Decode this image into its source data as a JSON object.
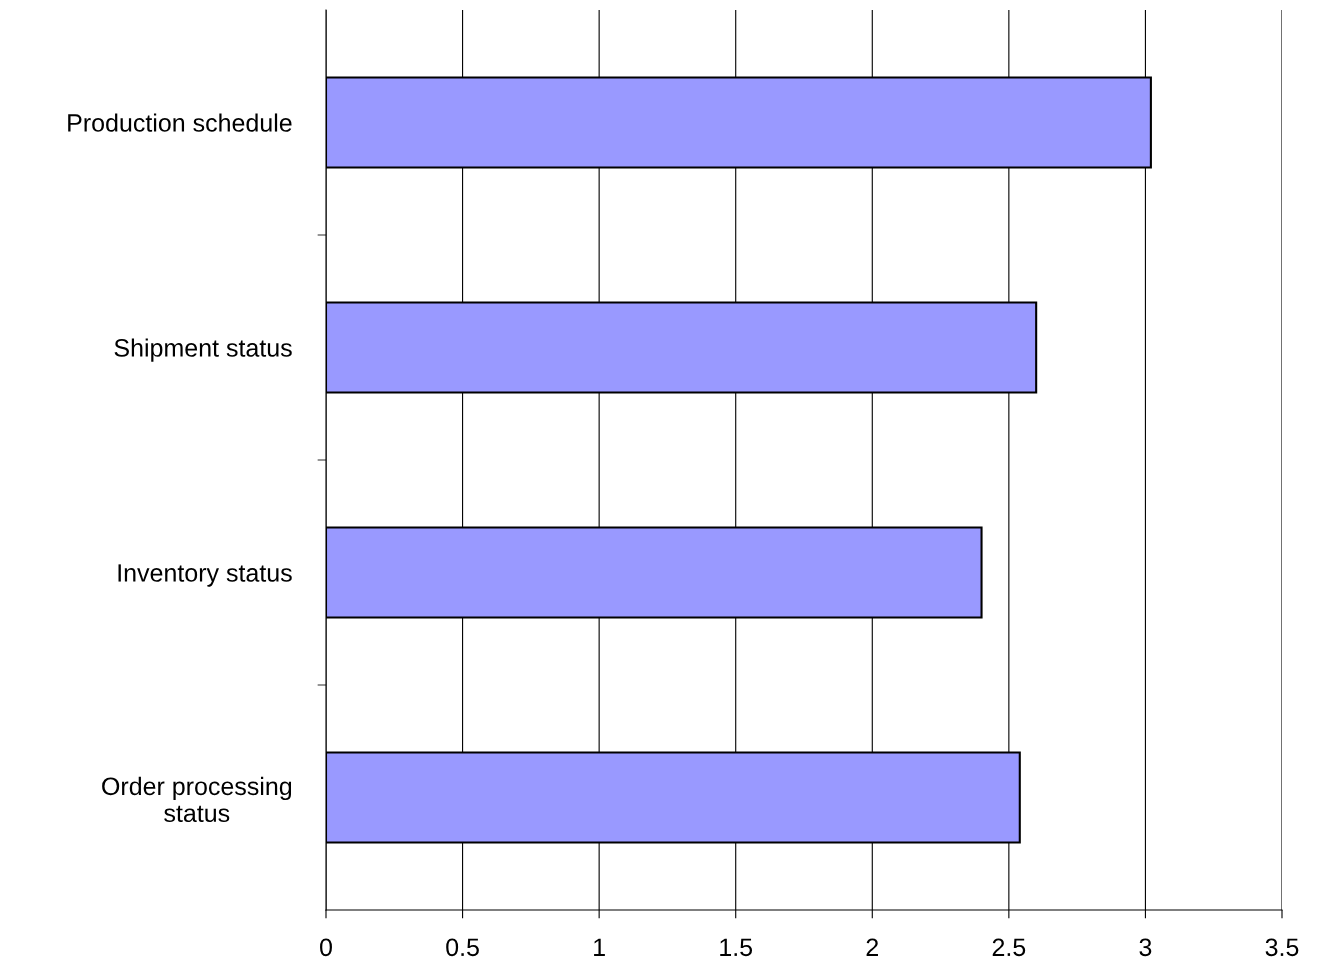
{
  "chart_data": {
    "type": "bar",
    "orientation": "horizontal",
    "categories": [
      "Production schedule",
      "Shipment status",
      "Inventory status",
      "Order processing status"
    ],
    "values": [
      3.02,
      2.6,
      2.4,
      2.54
    ],
    "color": "#9999ff",
    "xlim": [
      0,
      3.5
    ],
    "xticks": [
      0,
      0.5,
      1,
      1.5,
      2,
      2.5,
      3,
      3.5
    ],
    "grid": "x"
  }
}
